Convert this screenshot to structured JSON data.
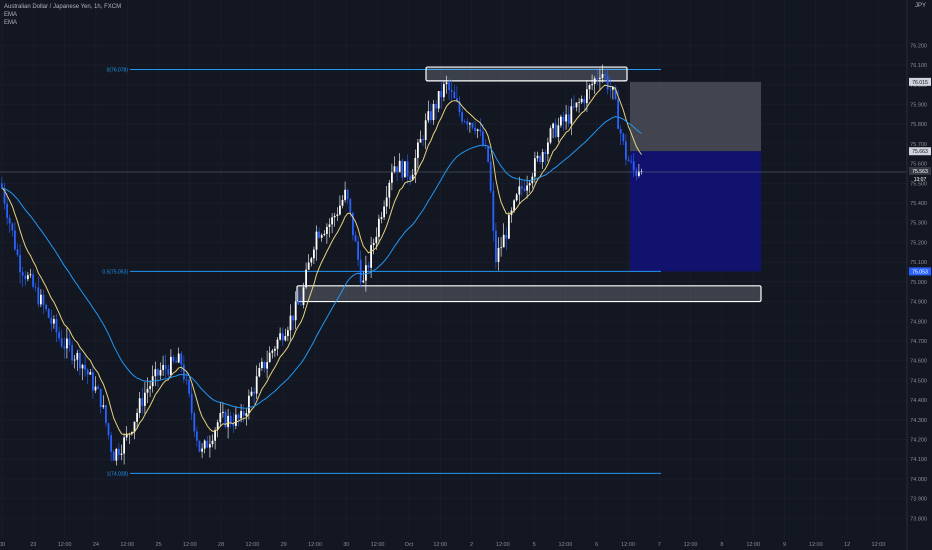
{
  "legend": {
    "symbol": "Australian Dollar / Japanese Yen, 1h, FXCM",
    "ema1": "EMA",
    "ema2": "EMA"
  },
  "currency": "JPY",
  "colors": {
    "background": "#131722",
    "grid": "#1c2030",
    "up": "#ffffff",
    "down": "#2962ff",
    "ema_fast": "#e8d27a",
    "ema_slow": "#2196f3",
    "fib": "#2196f3",
    "stop_zone": "#4b4e57",
    "target_zone": "#10127a",
    "axis_text": "#8a8e99"
  },
  "chart_data": {
    "type": "candlestick",
    "title": "Australian Dollar / Japanese Yen, 1h, FXCM",
    "ylim": [
      73.7,
      76.4
    ],
    "y_ticks": [
      "76.200",
      "76.100",
      "76.000",
      "75.900",
      "75.800",
      "75.700",
      "75.600",
      "75.500",
      "75.400",
      "75.300",
      "75.200",
      "75.100",
      "75.000",
      "74.900",
      "74.800",
      "74.700",
      "74.600",
      "74.500",
      "74.400",
      "74.300",
      "74.200",
      "74.100",
      "74.000",
      "73.900",
      "73.800"
    ],
    "x_ticks": [
      "00",
      "23",
      "12:00",
      "24",
      "12:00",
      "25",
      "12:00",
      "28",
      "12:00",
      "29",
      "12:00",
      "30",
      "12:00",
      "Oct",
      "12:00",
      "2",
      "12:00",
      "5",
      "12:00",
      "6",
      "12:00",
      "7",
      "12:00",
      "8",
      "12:00",
      "9",
      "12:00",
      "12",
      "12:00"
    ],
    "price_labels": {
      "stop": "76.015",
      "entry": "75.663",
      "current": "75.563",
      "countdown": "13:07",
      "target": "75.053"
    },
    "fib_levels": [
      {
        "label": "0(76.078)",
        "price": 76.078
      },
      {
        "label": "0.5(75.053)",
        "price": 75.053
      },
      {
        "label": "1(74.028)",
        "price": 74.028
      }
    ],
    "zones": [
      {
        "name": "supply-zone",
        "top": 76.09,
        "bottom": 76.02
      },
      {
        "name": "demand-zone",
        "top": 74.98,
        "bottom": 74.9
      }
    ],
    "position": {
      "entry": 75.663,
      "stop": 76.015,
      "target": 75.053
    },
    "hlc_path": [
      [
        0,
        75.5
      ],
      [
        18,
        75.1
      ],
      [
        40,
        74.9
      ],
      [
        60,
        74.7
      ],
      [
        80,
        74.6
      ],
      [
        100,
        74.4
      ],
      [
        112,
        74.12
      ],
      [
        125,
        74.2
      ],
      [
        145,
        74.45
      ],
      [
        160,
        74.55
      ],
      [
        180,
        74.6
      ],
      [
        200,
        74.12
      ],
      [
        218,
        74.3
      ],
      [
        240,
        74.3
      ],
      [
        260,
        74.55
      ],
      [
        282,
        74.75
      ],
      [
        300,
        74.9
      ],
      [
        315,
        75.25
      ],
      [
        330,
        75.3
      ],
      [
        345,
        75.45
      ],
      [
        362,
        74.98
      ],
      [
        375,
        75.25
      ],
      [
        392,
        75.6
      ],
      [
        410,
        75.55
      ],
      [
        425,
        75.8
      ],
      [
        445,
        76.0
      ],
      [
        460,
        75.85
      ],
      [
        475,
        75.8
      ],
      [
        488,
        75.6
      ],
      [
        494,
        75.1
      ],
      [
        505,
        75.25
      ],
      [
        518,
        75.45
      ],
      [
        535,
        75.6
      ],
      [
        550,
        75.75
      ],
      [
        570,
        75.85
      ],
      [
        585,
        75.95
      ],
      [
        600,
        76.08
      ],
      [
        612,
        75.95
      ],
      [
        624,
        75.65
      ],
      [
        634,
        75.55
      ],
      [
        645,
        75.64
      ]
    ]
  }
}
